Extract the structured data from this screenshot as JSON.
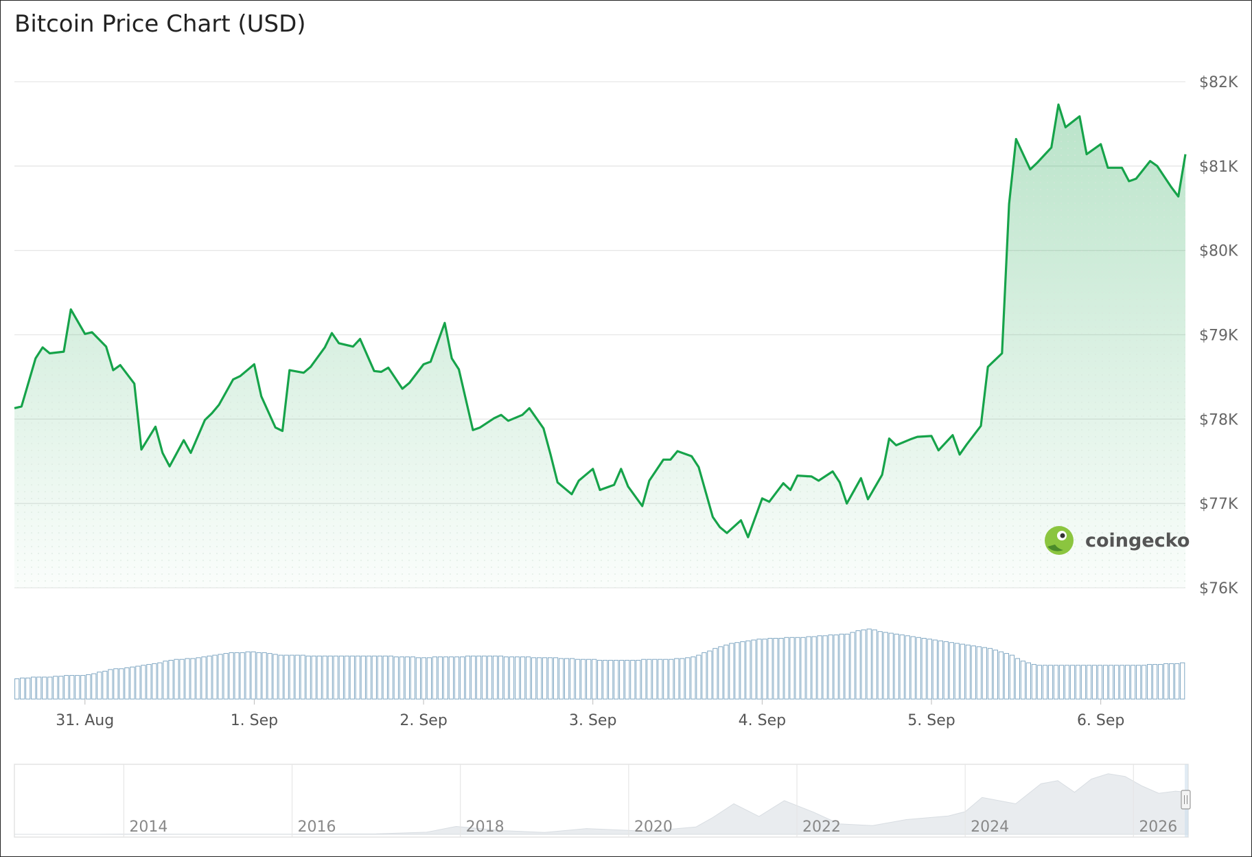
{
  "chart_data": {
    "type": "line",
    "title": "Bitcoin Price Chart (USD)",
    "currency": "USD",
    "y_axis": {
      "min": 76000,
      "max": 82000,
      "ticks": [
        76000,
        77000,
        78000,
        79000,
        80000,
        81000,
        82000
      ],
      "tick_labels": [
        "$76K",
        "$77K",
        "$78K",
        "$79K",
        "$80K",
        "$81K",
        "$82K"
      ],
      "position": "right",
      "grid": true
    },
    "x_axis": {
      "start": "2025-08-30T14:00",
      "end": "2025-09-06T12:00",
      "tick_labels": [
        "31. Aug",
        "1. Sep",
        "2. Sep",
        "3. Sep",
        "4. Sep",
        "5. Sep",
        "6. Sep"
      ],
      "tick_dates": [
        "2025-08-31T00:00",
        "2025-09-01T00:00",
        "2025-09-02T00:00",
        "2025-09-03T00:00",
        "2025-09-04T00:00",
        "2025-09-05T00:00",
        "2025-09-06T00:00"
      ]
    },
    "series": [
      {
        "color": "#16a34a",
        "fill": "gradient-green",
        "points": [
          [
            "2025-08-30T14:00",
            78130
          ],
          [
            "2025-08-30T15:00",
            78150
          ],
          [
            "2025-08-30T17:00",
            78720
          ],
          [
            "2025-08-30T18:00",
            78850
          ],
          [
            "2025-08-30T19:00",
            78780
          ],
          [
            "2025-08-30T21:00",
            78800
          ],
          [
            "2025-08-30T22:00",
            79300
          ],
          [
            "2025-08-31T00:00",
            79010
          ],
          [
            "2025-08-31T01:00",
            79030
          ],
          [
            "2025-08-31T03:00",
            78860
          ],
          [
            "2025-08-31T04:00",
            78580
          ],
          [
            "2025-08-31T05:00",
            78640
          ],
          [
            "2025-08-31T07:00",
            78420
          ],
          [
            "2025-08-31T08:00",
            77640
          ],
          [
            "2025-08-31T10:00",
            77910
          ],
          [
            "2025-08-31T11:00",
            77600
          ],
          [
            "2025-08-31T12:00",
            77440
          ],
          [
            "2025-08-31T14:00",
            77750
          ],
          [
            "2025-08-31T15:00",
            77600
          ],
          [
            "2025-08-31T17:00",
            77990
          ],
          [
            "2025-08-31T18:00",
            78070
          ],
          [
            "2025-08-31T19:00",
            78170
          ],
          [
            "2025-08-31T21:00",
            78470
          ],
          [
            "2025-08-31T22:00",
            78510
          ],
          [
            "2025-09-01T00:00",
            78650
          ],
          [
            "2025-09-01T01:00",
            78270
          ],
          [
            "2025-09-01T03:00",
            77900
          ],
          [
            "2025-09-01T04:00",
            77860
          ],
          [
            "2025-09-01T05:00",
            78580
          ],
          [
            "2025-09-01T07:00",
            78550
          ],
          [
            "2025-09-01T08:00",
            78620
          ],
          [
            "2025-09-01T10:00",
            78850
          ],
          [
            "2025-09-01T11:00",
            79020
          ],
          [
            "2025-09-01T12:00",
            78900
          ],
          [
            "2025-09-01T14:00",
            78860
          ],
          [
            "2025-09-01T15:00",
            78950
          ],
          [
            "2025-09-01T17:00",
            78570
          ],
          [
            "2025-09-01T18:00",
            78560
          ],
          [
            "2025-09-01T19:00",
            78610
          ],
          [
            "2025-09-01T21:00",
            78360
          ],
          [
            "2025-09-01T22:00",
            78430
          ],
          [
            "2025-09-02T00:00",
            78650
          ],
          [
            "2025-09-02T01:00",
            78680
          ],
          [
            "2025-09-02T03:00",
            79140
          ],
          [
            "2025-09-02T04:00",
            78720
          ],
          [
            "2025-09-02T05:00",
            78590
          ],
          [
            "2025-09-02T07:00",
            77870
          ],
          [
            "2025-09-02T08:00",
            77900
          ],
          [
            "2025-09-02T10:00",
            78010
          ],
          [
            "2025-09-02T11:00",
            78050
          ],
          [
            "2025-09-02T12:00",
            77980
          ],
          [
            "2025-09-02T14:00",
            78050
          ],
          [
            "2025-09-02T15:00",
            78130
          ],
          [
            "2025-09-02T17:00",
            77890
          ],
          [
            "2025-09-02T18:00",
            77580
          ],
          [
            "2025-09-02T19:00",
            77250
          ],
          [
            "2025-09-02T21:00",
            77110
          ],
          [
            "2025-09-02T22:00",
            77270
          ],
          [
            "2025-09-03T00:00",
            77410
          ],
          [
            "2025-09-03T01:00",
            77160
          ],
          [
            "2025-09-03T03:00",
            77220
          ],
          [
            "2025-09-03T04:00",
            77410
          ],
          [
            "2025-09-03T05:00",
            77200
          ],
          [
            "2025-09-03T07:00",
            76970
          ],
          [
            "2025-09-03T08:00",
            77270
          ],
          [
            "2025-09-03T10:00",
            77520
          ],
          [
            "2025-09-03T11:00",
            77520
          ],
          [
            "2025-09-03T12:00",
            77620
          ],
          [
            "2025-09-03T14:00",
            77560
          ],
          [
            "2025-09-03T15:00",
            77430
          ],
          [
            "2025-09-03T17:00",
            76840
          ],
          [
            "2025-09-03T18:00",
            76720
          ],
          [
            "2025-09-03T19:00",
            76650
          ],
          [
            "2025-09-03T21:00",
            76800
          ],
          [
            "2025-09-03T22:00",
            76600
          ],
          [
            "2025-09-04T00:00",
            77060
          ],
          [
            "2025-09-04T01:00",
            77020
          ],
          [
            "2025-09-04T03:00",
            77240
          ],
          [
            "2025-09-04T04:00",
            77160
          ],
          [
            "2025-09-04T05:00",
            77330
          ],
          [
            "2025-09-04T07:00",
            77320
          ],
          [
            "2025-09-04T08:00",
            77270
          ],
          [
            "2025-09-04T10:00",
            77380
          ],
          [
            "2025-09-04T11:00",
            77250
          ],
          [
            "2025-09-04T12:00",
            77000
          ],
          [
            "2025-09-04T14:00",
            77300
          ],
          [
            "2025-09-04T15:00",
            77050
          ],
          [
            "2025-09-04T17:00",
            77340
          ],
          [
            "2025-09-04T18:00",
            77770
          ],
          [
            "2025-09-04T19:00",
            77690
          ],
          [
            "2025-09-04T21:00",
            77760
          ],
          [
            "2025-09-04T22:00",
            77790
          ],
          [
            "2025-09-05T00:00",
            77800
          ],
          [
            "2025-09-05T01:00",
            77630
          ],
          [
            "2025-09-05T03:00",
            77810
          ],
          [
            "2025-09-05T04:00",
            77580
          ],
          [
            "2025-09-05T05:00",
            77700
          ],
          [
            "2025-09-05T07:00",
            77920
          ],
          [
            "2025-09-05T08:00",
            78620
          ],
          [
            "2025-09-05T10:00",
            78780
          ],
          [
            "2025-09-05T11:00",
            80550
          ],
          [
            "2025-09-05T12:00",
            81320
          ],
          [
            "2025-09-05T14:00",
            80960
          ],
          [
            "2025-09-05T15:00",
            81040
          ],
          [
            "2025-09-05T17:00",
            81220
          ],
          [
            "2025-09-05T18:00",
            81730
          ],
          [
            "2025-09-05T19:00",
            81460
          ],
          [
            "2025-09-05T21:00",
            81590
          ],
          [
            "2025-09-05T22:00",
            81140
          ],
          [
            "2025-09-06T00:00",
            81260
          ],
          [
            "2025-09-06T01:00",
            80980
          ],
          [
            "2025-09-06T03:00",
            80980
          ],
          [
            "2025-09-06T04:00",
            80820
          ],
          [
            "2025-09-06T05:00",
            80850
          ],
          [
            "2025-09-06T07:00",
            81060
          ],
          [
            "2025-09-06T08:00",
            81000
          ],
          [
            "2025-09-06T10:00",
            80750
          ],
          [
            "2025-09-06T11:00",
            80640
          ],
          [
            "2025-09-06T12:00",
            81140
          ]
        ]
      }
    ],
    "volume": {
      "color": "#7ea6c2",
      "values": [
        24,
        25,
        25,
        26,
        26,
        26,
        26,
        27,
        27,
        28,
        28,
        28,
        28,
        29,
        30,
        32,
        33,
        35,
        36,
        36,
        37,
        38,
        39,
        40,
        41,
        42,
        43,
        45,
        46,
        47,
        47,
        48,
        48,
        49,
        50,
        51,
        52,
        53,
        54,
        55,
        55,
        55,
        56,
        56,
        55,
        55,
        54,
        53,
        52,
        52,
        52,
        52,
        52,
        51,
        51,
        51,
        51,
        51,
        51,
        51,
        51,
        51,
        51,
        51,
        51,
        51,
        51,
        51,
        51,
        50,
        50,
        50,
        50,
        49,
        49,
        49,
        50,
        50,
        50,
        50,
        50,
        50,
        51,
        51,
        51,
        51,
        51,
        51,
        51,
        50,
        50,
        50,
        50,
        50,
        49,
        49,
        49,
        49,
        49,
        48,
        48,
        48,
        47,
        47,
        47,
        47,
        46,
        46,
        46,
        46,
        46,
        46,
        46,
        46,
        47,
        47,
        47,
        47,
        47,
        47,
        48,
        48,
        49,
        50,
        52,
        55,
        57,
        60,
        62,
        64,
        66,
        67,
        68,
        69,
        70,
        71,
        71,
        72,
        72,
        72,
        73,
        73,
        73,
        73,
        74,
        74,
        75,
        75,
        76,
        76,
        77,
        77,
        79,
        81,
        82,
        83,
        82,
        80,
        79,
        78,
        77,
        76,
        75,
        74,
        73,
        72,
        71,
        70,
        69,
        68,
        67,
        66,
        65,
        64,
        63,
        62,
        61,
        60,
        58,
        56,
        54,
        52,
        48,
        45,
        43,
        41,
        40,
        40,
        40,
        40,
        40,
        40,
        40,
        40,
        40,
        40,
        40,
        40,
        40,
        40,
        40,
        40,
        40,
        40,
        40,
        40,
        41,
        41,
        41,
        42,
        42,
        42,
        43
      ]
    },
    "navigator": {
      "year_labels": [
        "2014",
        "2016",
        "2018",
        "2020",
        "2022",
        "2024",
        "2026"
      ],
      "year_values": [
        2014,
        2016,
        2018,
        2020,
        2022,
        2024,
        2026
      ],
      "range": [
        2012.7,
        2026.65
      ],
      "history": [
        [
          2012.7,
          10
        ],
        [
          2013.5,
          50
        ],
        [
          2014.0,
          500
        ],
        [
          2015.0,
          300
        ],
        [
          2016.0,
          420
        ],
        [
          2017.0,
          1000
        ],
        [
          2017.6,
          4000
        ],
        [
          2017.95,
          15000
        ],
        [
          2018.5,
          7000
        ],
        [
          2019.0,
          3600
        ],
        [
          2019.5,
          11000
        ],
        [
          2020.0,
          7500
        ],
        [
          2020.2,
          5500
        ],
        [
          2020.8,
          14000
        ],
        [
          2021.0,
          32000
        ],
        [
          2021.25,
          58000
        ],
        [
          2021.55,
          34000
        ],
        [
          2021.85,
          64000
        ],
        [
          2022.2,
          42000
        ],
        [
          2022.5,
          20000
        ],
        [
          2022.9,
          16500
        ],
        [
          2023.3,
          28000
        ],
        [
          2023.8,
          35000
        ],
        [
          2024.0,
          43000
        ],
        [
          2024.2,
          70000
        ],
        [
          2024.6,
          58000
        ],
        [
          2024.9,
          96000
        ],
        [
          2025.1,
          102000
        ],
        [
          2025.3,
          80000
        ],
        [
          2025.5,
          105000
        ],
        [
          2025.7,
          115000
        ],
        [
          2025.9,
          110000
        ],
        [
          2026.1,
          92000
        ],
        [
          2026.3,
          78000
        ],
        [
          2026.5,
          82000
        ],
        [
          2026.65,
          80000
        ]
      ]
    },
    "watermark": "coingecko"
  }
}
